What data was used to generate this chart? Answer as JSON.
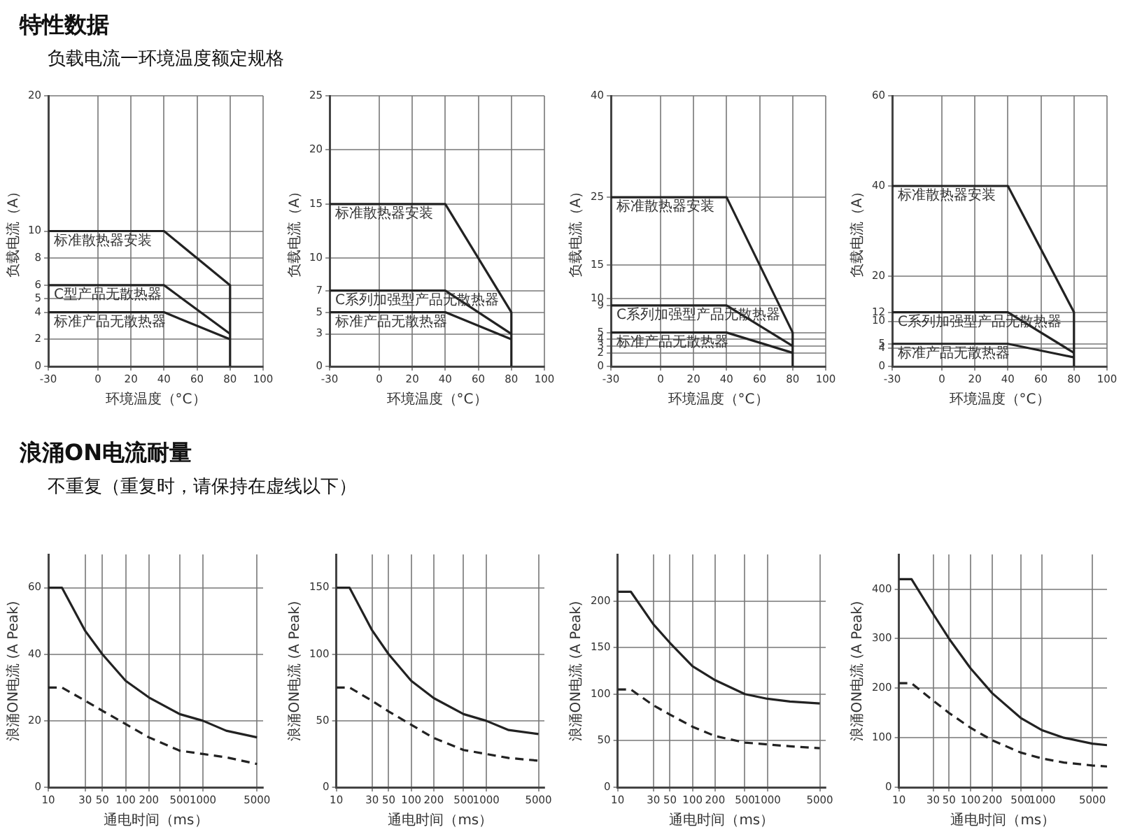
{
  "chart_data": [
    {
      "type": "line",
      "annotations": [
        "特性数据",
        "负载电流一环境温度额定规格"
      ],
      "xlabel": "环境温度（°C）",
      "ylabel": "负载电流（A）",
      "xlim": [
        -30,
        100
      ],
      "xticks": [
        -30,
        0,
        20,
        40,
        60,
        80,
        100
      ],
      "ylim": [
        0,
        20
      ],
      "yticks": [
        0,
        2,
        4,
        5,
        6,
        8,
        10,
        20
      ],
      "grid": true,
      "legend": false,
      "marker": "none",
      "series": [
        {
          "name": "标准散热器安装",
          "color": "#222222",
          "line_style": "solid",
          "x": [
            -30,
            40,
            80,
            80
          ],
          "values": [
            10,
            10,
            6,
            0
          ]
        },
        {
          "name": "C型产品无散热器",
          "color": "#222222",
          "line_style": "solid",
          "x": [
            -30,
            40,
            80
          ],
          "values": [
            6,
            6,
            2.4
          ]
        },
        {
          "name": "标准产品无散热器",
          "color": "#222222",
          "line_style": "solid",
          "x": [
            -30,
            40,
            80
          ],
          "values": [
            4,
            4,
            2
          ]
        }
      ]
    },
    {
      "type": "line",
      "xlabel": "环境温度（°C）",
      "ylabel": "负载电流（A）",
      "xlim": [
        -30,
        100
      ],
      "xticks": [
        -30,
        0,
        20,
        40,
        60,
        80,
        100
      ],
      "ylim": [
        0,
        25
      ],
      "yticks": [
        0,
        3,
        5,
        7,
        10,
        15,
        20,
        25
      ],
      "grid": true,
      "legend": false,
      "marker": "none",
      "series": [
        {
          "name": "标准散热器安装",
          "color": "#222222",
          "line_style": "solid",
          "x": [
            -30,
            40,
            80,
            80
          ],
          "values": [
            15,
            15,
            5,
            0
          ]
        },
        {
          "name": "C系列加强型产品无散热器",
          "color": "#222222",
          "line_style": "solid",
          "x": [
            -30,
            40,
            80
          ],
          "values": [
            7,
            7,
            3
          ]
        },
        {
          "name": "标准产品无散热器",
          "color": "#222222",
          "line_style": "solid",
          "x": [
            -30,
            40,
            80
          ],
          "values": [
            5,
            5,
            2.5
          ]
        }
      ]
    },
    {
      "type": "line",
      "xlabel": "环境温度（°C）",
      "ylabel": "负载电流（A）",
      "xlim": [
        -30,
        100
      ],
      "xticks": [
        -30,
        0,
        20,
        40,
        60,
        80,
        100
      ],
      "ylim": [
        0,
        40
      ],
      "yticks": [
        0,
        2,
        3,
        4,
        5,
        9,
        10,
        15,
        25,
        40
      ],
      "grid": true,
      "legend": false,
      "marker": "none",
      "series": [
        {
          "name": "标准散热器安装",
          "color": "#222222",
          "line_style": "solid",
          "x": [
            -30,
            40,
            80,
            80
          ],
          "values": [
            25,
            25,
            5,
            0
          ]
        },
        {
          "name": "C系列加强型产品无散热器",
          "color": "#222222",
          "line_style": "solid",
          "x": [
            -30,
            40,
            80
          ],
          "values": [
            9,
            9,
            3
          ]
        },
        {
          "name": "标准产品无散热器",
          "color": "#222222",
          "line_style": "solid",
          "x": [
            -30,
            40,
            80
          ],
          "values": [
            5,
            5,
            2
          ]
        }
      ]
    },
    {
      "type": "line",
      "xlabel": "环境温度（°C）",
      "ylabel": "负载电流（A）",
      "xlim": [
        -30,
        100
      ],
      "xticks": [
        -30,
        0,
        20,
        40,
        60,
        80,
        100
      ],
      "ylim": [
        0,
        60
      ],
      "yticks": [
        0,
        4,
        5,
        10,
        12,
        20,
        40,
        60
      ],
      "grid": true,
      "legend": false,
      "marker": "none",
      "series": [
        {
          "name": "标准散热器安装",
          "color": "#222222",
          "line_style": "solid",
          "x": [
            -30,
            40,
            80,
            80
          ],
          "values": [
            40,
            40,
            12,
            0
          ]
        },
        {
          "name": "C系列加强型产品无散热器",
          "color": "#222222",
          "line_style": "solid",
          "x": [
            -30,
            40,
            80
          ],
          "values": [
            12,
            12,
            3
          ]
        },
        {
          "name": "标准产品无散热器",
          "color": "#222222",
          "line_style": "solid",
          "x": [
            -30,
            40,
            80
          ],
          "values": [
            5,
            5,
            2
          ]
        }
      ]
    },
    {
      "type": "line",
      "annotations": [
        "浪涌ON电流耐量",
        "不重复（重复时，请保持在虚线以下）"
      ],
      "xlabel": "通电时间（ms）",
      "ylabel": "浪涌ON电流 (A Peak)",
      "log": "x",
      "xlim": [
        10,
        6000
      ],
      "xticks": [
        10,
        30,
        50,
        100,
        200,
        500,
        1000,
        5000
      ],
      "ylim": [
        0,
        70
      ],
      "yticks": [
        0,
        20,
        40,
        60
      ],
      "grid": true,
      "legend": false,
      "marker": "none",
      "series": [
        {
          "color": "#222222",
          "line_style": "solid",
          "x": [
            10,
            15,
            30,
            50,
            100,
            200,
            500,
            1000,
            2000,
            5000
          ],
          "values": [
            60,
            60,
            47,
            40,
            32,
            27,
            22,
            20,
            17,
            15
          ]
        },
        {
          "color": "#222222",
          "line_style": "dashed",
          "x": [
            10,
            15,
            30,
            50,
            100,
            200,
            500,
            1000,
            2000,
            5000
          ],
          "values": [
            30,
            30,
            26,
            23,
            19,
            15,
            11,
            10,
            9,
            7
          ]
        }
      ]
    },
    {
      "type": "line",
      "xlabel": "通电时间（ms）",
      "ylabel": "浪涌ON电流 (A Peak)",
      "log": "x",
      "xlim": [
        10,
        6000
      ],
      "xticks": [
        10,
        30,
        50,
        100,
        200,
        500,
        1000,
        5000
      ],
      "ylim": [
        0,
        175
      ],
      "yticks": [
        0,
        50,
        100,
        150
      ],
      "grid": true,
      "legend": false,
      "marker": "none",
      "series": [
        {
          "color": "#222222",
          "line_style": "solid",
          "x": [
            10,
            15,
            30,
            50,
            100,
            200,
            500,
            1000,
            2000,
            5000
          ],
          "values": [
            150,
            150,
            118,
            100,
            80,
            67,
            55,
            50,
            43,
            40
          ]
        },
        {
          "color": "#222222",
          "line_style": "dashed",
          "x": [
            10,
            15,
            30,
            50,
            100,
            200,
            500,
            1000,
            2000,
            5000
          ],
          "values": [
            75,
            75,
            65,
            57,
            47,
            37,
            28,
            25,
            22,
            20
          ]
        }
      ]
    },
    {
      "type": "line",
      "xlabel": "通电时间（ms）",
      "ylabel": "浪涌ON电流 (A Peak)",
      "log": "x",
      "xlim": [
        10,
        6000
      ],
      "xticks": [
        10,
        30,
        50,
        100,
        200,
        500,
        1000,
        5000
      ],
      "ylim": [
        0,
        250
      ],
      "yticks": [
        0,
        50,
        100,
        150,
        200
      ],
      "grid": true,
      "legend": false,
      "marker": "none",
      "series": [
        {
          "color": "#222222",
          "line_style": "solid",
          "x": [
            10,
            15,
            30,
            50,
            100,
            200,
            500,
            1000,
            2000,
            5000
          ],
          "values": [
            210,
            210,
            175,
            155,
            130,
            115,
            100,
            95,
            92,
            90
          ]
        },
        {
          "color": "#222222",
          "line_style": "dashed",
          "x": [
            10,
            15,
            30,
            50,
            100,
            200,
            500,
            1000,
            2000,
            5000
          ],
          "values": [
            105,
            105,
            88,
            78,
            65,
            55,
            48,
            46,
            44,
            42
          ]
        }
      ]
    },
    {
      "type": "line",
      "xlabel": "通电时间（ms）",
      "ylabel": "浪涌ON电流 (A Peak)",
      "log": "x",
      "xlim": [
        10,
        8000
      ],
      "xticks": [
        10,
        30,
        50,
        100,
        200,
        500,
        1000,
        5000
      ],
      "ylim": [
        0,
        470
      ],
      "yticks": [
        0,
        100,
        200,
        300,
        400
      ],
      "grid": true,
      "legend": false,
      "marker": "none",
      "series": [
        {
          "color": "#222222",
          "line_style": "solid",
          "x": [
            10,
            15,
            30,
            50,
            100,
            200,
            500,
            1000,
            2000,
            5000,
            8000
          ],
          "values": [
            420,
            420,
            350,
            300,
            240,
            190,
            140,
            115,
            100,
            88,
            85
          ]
        },
        {
          "color": "#222222",
          "line_style": "dashed",
          "x": [
            10,
            15,
            30,
            50,
            100,
            200,
            500,
            1000,
            2000,
            5000,
            8000
          ],
          "values": [
            210,
            210,
            175,
            150,
            120,
            95,
            70,
            58,
            50,
            44,
            42
          ]
        }
      ]
    }
  ]
}
